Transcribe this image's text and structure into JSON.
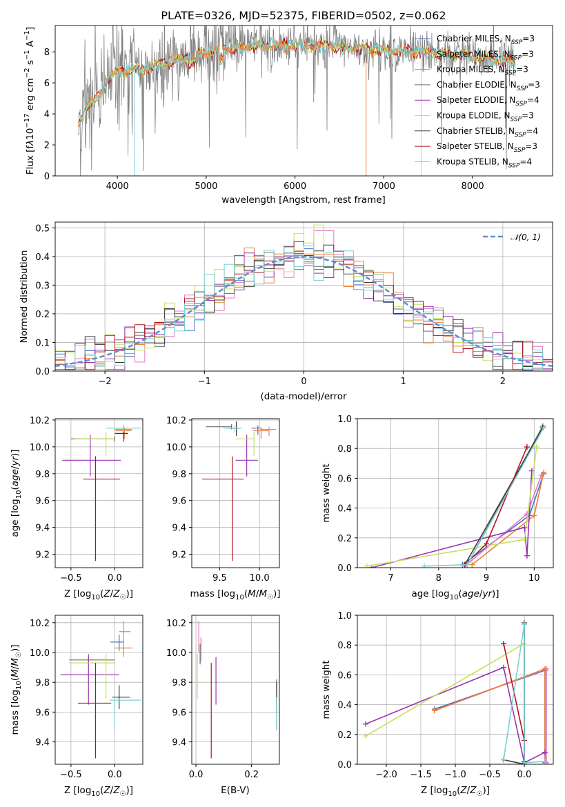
{
  "colors": [
    "#4472c4",
    "#e377c2",
    "#ee7d31",
    "#6b6b6b",
    "#9934b0",
    "#c8e05c",
    "#3d3d3d",
    "#b5121b",
    "#78d0d6"
  ],
  "chart_data": [
    {
      "id": "spectrum",
      "type": "line",
      "title": "PLATE=0326, MJD=52375, FIBERID=0502, z=0.062",
      "xlabel": "wavelength [Angstrom, rest frame]",
      "ylabel": "Flux [f_λ 10⁻¹⁷ erg cm⁻² s⁻¹ Å⁻¹]",
      "xlim": [
        3300,
        8900
      ],
      "ylim": [
        0,
        9.7
      ],
      "xticks": [
        "4000",
        "5000",
        "6000",
        "7000",
        "8000"
      ],
      "yticks": [
        "0",
        "2",
        "4",
        "6",
        "8"
      ],
      "grid": false,
      "legend_position": "top-right",
      "legend": [
        {
          "name": "Chabrier MILES, N_SSP=3",
          "sub": "SSP",
          "pre": "Chabrier MILES, N",
          "post": "=3"
        },
        {
          "name": "Salpeter MILES, N_SSP=3",
          "pre": "Salpeter MILES, N",
          "post": "=3"
        },
        {
          "name": "Kroupa MILES, N_SSP=3",
          "pre": "Kroupa MILES, N",
          "post": "=3"
        },
        {
          "name": "Chabrier ELODIE, N_SSP=3",
          "pre": "Chabrier ELODIE, N",
          "post": "=3"
        },
        {
          "name": "Salpeter ELODIE, N_SSP=4",
          "pre": "Salpeter ELODIE, N",
          "post": "=4"
        },
        {
          "name": "Kroupa ELODIE, N_SSP=3",
          "pre": "Kroupa ELODIE, N",
          "post": "=3"
        },
        {
          "name": "Chabrier STELIB, N_SSP=4",
          "pre": "Chabrier STELIB, N",
          "post": "=4"
        },
        {
          "name": "Salpeter STELIB, N_SSP=3",
          "pre": "Salpeter STELIB, N",
          "post": "=3"
        },
        {
          "name": "Kroupa STELIB, N_SSP=4",
          "pre": "Kroupa STELIB, N",
          "post": "=4"
        }
      ],
      "data_x_range": [
        3560,
        8480
      ],
      "continuum": [
        [
          3560,
          3.3
        ],
        [
          3650,
          4.4
        ],
        [
          3800,
          5.2
        ],
        [
          3900,
          6.3
        ],
        [
          4000,
          6.7
        ],
        [
          4300,
          6.9
        ],
        [
          4500,
          7.2
        ],
        [
          5000,
          8.0
        ],
        [
          5500,
          8.4
        ],
        [
          6000,
          8.4
        ],
        [
          6500,
          8.3
        ],
        [
          7000,
          8.1
        ],
        [
          7500,
          8.0
        ],
        [
          8000,
          7.7
        ],
        [
          8400,
          7.4
        ],
        [
          8480,
          7.3
        ]
      ]
    },
    {
      "id": "residuals",
      "type": "histogram",
      "xlabel": "(data-model)/error",
      "ylabel": "Normed distribution",
      "xlim": [
        -2.5,
        2.5
      ],
      "ylim": [
        0,
        0.52
      ],
      "xticks": [
        "−2",
        "−1",
        "0",
        "1",
        "2"
      ],
      "yticks": [
        "0.0",
        "0.1",
        "0.2",
        "0.3",
        "0.4",
        "0.5"
      ],
      "grid": true,
      "legend_position": "top-right",
      "reference_curve": "N(0,1)",
      "reference_label": "𝒩(0, 1)",
      "bin_width": 0.1,
      "spike": {
        "x": 0.2,
        "value": 0.49
      }
    },
    {
      "id": "age_vs_Z",
      "type": "errorbar",
      "xlabel": "Z [log₁₀(Z/Z☉)]",
      "ylabel": "age  [log₁₀(age/yr)]",
      "xlim": [
        -0.68,
        0.32
      ],
      "ylim": [
        9.1,
        10.21
      ],
      "xticks": [
        "−0.5",
        "0.0"
      ],
      "xtick_values": [
        -0.5,
        0.0
      ],
      "yticks": [
        "9.2",
        "9.4",
        "9.6",
        "9.8",
        "10.0",
        "10.2"
      ],
      "grid": true,
      "points": [
        {
          "x": 0.1,
          "xerr": [
            0.1,
            0.05
          ],
          "y": 10.14,
          "yerr": [
            0.05,
            0.02
          ]
        },
        {
          "x": 0.1,
          "xerr": [
            0.1,
            0.1
          ],
          "y": 10.13,
          "yerr": [
            0.05,
            0.02
          ]
        },
        {
          "x": 0.11,
          "xerr": [
            0.1,
            0.08
          ],
          "y": 10.12,
          "yerr": [
            0.06,
            0.02
          ]
        },
        {
          "x": 0.0,
          "xerr": [
            0.5,
            0.0
          ],
          "y": 10.06,
          "yerr": [
            0.02,
            0.02
          ]
        },
        {
          "x": -0.28,
          "xerr": [
            0.32,
            0.35
          ],
          "y": 9.9,
          "yerr": [
            0.12,
            0.19
          ]
        },
        {
          "x": -0.1,
          "xerr": [
            0.35,
            0.1
          ],
          "y": 10.06,
          "yerr": [
            0.13,
            0.05
          ]
        },
        {
          "x": 0.1,
          "xerr": [
            0.1,
            0.05
          ],
          "y": 10.1,
          "yerr": [
            0.06,
            0.05
          ]
        },
        {
          "x": -0.22,
          "xerr": [
            0.14,
            0.28
          ],
          "y": 9.76,
          "yerr": [
            0.61,
            0.17
          ]
        },
        {
          "x": 0.1,
          "xerr": [
            0.2,
            0.2
          ],
          "y": 10.14,
          "yerr": [
            0.03,
            0.02
          ]
        }
      ]
    },
    {
      "id": "age_vs_mass",
      "type": "errorbar",
      "xlabel": "mass [log₁₀(M/M☉)]",
      "ylabel": "",
      "xlim": [
        9.15,
        10.25
      ],
      "ylim": [
        9.1,
        10.21
      ],
      "xticks": [
        "9.5",
        "10.0"
      ],
      "xtick_values": [
        9.5,
        10.0
      ],
      "yticks": [
        "9.2",
        "9.4",
        "9.6",
        "9.8",
        "10.0",
        "10.2"
      ],
      "grid": true,
      "points": [
        {
          "x": 9.98,
          "xerr": [
            0.08,
            0.05
          ],
          "y": 10.14,
          "yerr": [
            0.05,
            0.02
          ]
        },
        {
          "x": 10.12,
          "xerr": [
            0.1,
            0.09
          ],
          "y": 10.13,
          "yerr": [
            0.05,
            0.02
          ]
        },
        {
          "x": 10.02,
          "xerr": [
            0.1,
            0.1
          ],
          "y": 10.12,
          "yerr": [
            0.06,
            0.02
          ]
        },
        {
          "x": 9.65,
          "xerr": [
            0.32,
            0.0
          ],
          "y": 10.15,
          "yerr": [
            0.02,
            0.02
          ]
        },
        {
          "x": 9.84,
          "xerr": [
            0.14,
            0.14
          ],
          "y": 9.9,
          "yerr": [
            0.12,
            0.19
          ]
        },
        {
          "x": 9.93,
          "xerr": [
            0.23,
            0.0
          ],
          "y": 10.06,
          "yerr": [
            0.13,
            0.05
          ]
        },
        {
          "x": 9.71,
          "xerr": [
            0.1,
            0.05
          ],
          "y": 10.14,
          "yerr": [
            0.06,
            0.05
          ]
        },
        {
          "x": 9.66,
          "xerr": [
            0.38,
            0.14
          ],
          "y": 9.76,
          "yerr": [
            0.61,
            0.17
          ]
        },
        {
          "x": 9.69,
          "xerr": [
            0.14,
            0.09
          ],
          "y": 10.14,
          "yerr": [
            0.03,
            0.02
          ]
        }
      ]
    },
    {
      "id": "weight_vs_age",
      "type": "line",
      "xlabel": "age  [log₁₀(age/yr)]",
      "ylabel": "mass weight",
      "xlim": [
        6.3,
        10.4
      ],
      "ylim": [
        0,
        1
      ],
      "xticks": [
        "7",
        "8",
        "9",
        "10"
      ],
      "xtick_values": [
        7,
        8,
        9,
        10
      ],
      "yticks": [
        "0.0",
        "0.2",
        "0.4",
        "0.6",
        "0.8",
        "1.0"
      ],
      "grid": true,
      "series": [
        {
          "x": [
            8.5,
            9.9,
            10.2
          ],
          "y": [
            0.02,
            0.35,
            0.63
          ]
        },
        {
          "x": [
            8.55,
            9.85,
            10.15
          ],
          "y": [
            0.01,
            0.36,
            0.62
          ]
        },
        {
          "x": [
            8.7,
            10.0,
            10.2
          ],
          "y": [
            0.02,
            0.35,
            0.64
          ]
        },
        {
          "x": [
            8.6,
            10.18
          ],
          "y": [
            0.02,
            0.95
          ]
        },
        {
          "x": [
            6.6,
            9.8,
            9.85,
            9.95
          ],
          "y": [
            0.0,
            0.27,
            0.08,
            0.65
          ]
        },
        {
          "x": [
            6.5,
            9.8,
            10.05
          ],
          "y": [
            0.01,
            0.19,
            0.81
          ]
        },
        {
          "x": [
            8.55,
            10.18
          ],
          "y": [
            0.02,
            0.94
          ]
        },
        {
          "x": [
            8.55,
            9.0,
            9.85
          ],
          "y": [
            0.02,
            0.16,
            0.81
          ]
        },
        {
          "x": [
            7.7,
            8.6,
            10.2
          ],
          "y": [
            0.01,
            0.02,
            0.94
          ]
        }
      ]
    },
    {
      "id": "mass_vs_Z",
      "type": "errorbar",
      "xlabel": "Z [log₁₀(Z/Z☉)]",
      "ylabel": "mass [log₁₀(M/M☉)]",
      "xlim": [
        -0.68,
        0.32
      ],
      "ylim": [
        9.25,
        10.25
      ],
      "xticks": [
        "−0.5",
        "0.0"
      ],
      "xtick_values": [
        -0.5,
        0.0
      ],
      "yticks": [
        "9.4",
        "9.6",
        "9.8",
        "10.0",
        "10.2"
      ],
      "grid": true,
      "points": [
        {
          "x": 0.05,
          "xerr": [
            0.1,
            0.05
          ],
          "y": 10.07,
          "yerr": [
            0.06,
            0.05
          ]
        },
        {
          "x": 0.1,
          "xerr": [
            0.05,
            0.08
          ],
          "y": 10.14,
          "yerr": [
            0.06,
            0.07
          ]
        },
        {
          "x": 0.1,
          "xerr": [
            0.1,
            0.1
          ],
          "y": 10.03,
          "yerr": [
            0.06,
            0.06
          ]
        },
        {
          "x": -0.3,
          "xerr": [
            0.22,
            0.3
          ],
          "y": 9.95,
          "yerr": [
            0.03,
            0.04
          ]
        },
        {
          "x": -0.3,
          "xerr": [
            0.32,
            0.35
          ],
          "y": 9.85,
          "yerr": [
            0.2,
            0.12
          ]
        },
        {
          "x": -0.1,
          "xerr": [
            0.42,
            0.1
          ],
          "y": 9.93,
          "yerr": [
            0.24,
            0.06
          ]
        },
        {
          "x": 0.05,
          "xerr": [
            0.08,
            0.12
          ],
          "y": 9.7,
          "yerr": [
            0.08,
            0.08
          ]
        },
        {
          "x": -0.22,
          "xerr": [
            0.2,
            0.18
          ],
          "y": 9.66,
          "yerr": [
            0.37,
            0.27
          ]
        },
        {
          "x": 0.0,
          "xerr": [
            0.06,
            0.3
          ],
          "y": 9.68,
          "yerr": [
            0.2,
            0.02
          ]
        }
      ]
    },
    {
      "id": "mass_vs_ebv",
      "type": "errorbar",
      "xlabel": "E(B-V)",
      "ylabel": "",
      "xlim": [
        -0.015,
        0.3
      ],
      "ylim": [
        9.25,
        10.25
      ],
      "xticks": [
        "0.0",
        "0.2"
      ],
      "xtick_values": [
        0.0,
        0.2
      ],
      "yticks": [
        "9.4",
        "9.6",
        "9.8",
        "10.0",
        "10.2"
      ],
      "grid": true,
      "points": [
        {
          "x": 0.015,
          "xerr": [
            0,
            0
          ],
          "y": 10.0,
          "yerr": [
            0.08,
            0.06
          ]
        },
        {
          "x": 0.01,
          "xerr": [
            0,
            0
          ],
          "y": 10.1,
          "yerr": [
            0.1,
            0.11
          ]
        },
        {
          "x": 0.018,
          "xerr": [
            0,
            0
          ],
          "y": 10.02,
          "yerr": [
            0.08,
            0.08
          ]
        },
        {
          "x": 0.29,
          "xerr": [
            0,
            0
          ],
          "y": 9.7,
          "yerr": [
            0.22,
            0.12
          ]
        },
        {
          "x": 0.072,
          "xerr": [
            0,
            0
          ],
          "y": 9.85,
          "yerr": [
            0.2,
            0.12
          ]
        },
        {
          "x": 0.005,
          "xerr": [
            0,
            0
          ],
          "y": 9.93,
          "yerr": [
            0.24,
            0.06
          ]
        },
        {
          "x": 0.29,
          "xerr": [
            0,
            0
          ],
          "y": 9.7,
          "yerr": [
            0.1,
            0.1
          ]
        },
        {
          "x": 0.055,
          "xerr": [
            0,
            0
          ],
          "y": 9.66,
          "yerr": [
            0.37,
            0.27
          ]
        },
        {
          "x": 0.29,
          "xerr": [
            0,
            0
          ],
          "y": 9.68,
          "yerr": [
            0.2,
            0.02
          ]
        }
      ]
    },
    {
      "id": "weight_vs_Z",
      "type": "line",
      "xlabel": "Z [log₁₀(Z/Z☉)]",
      "ylabel": "mass weight",
      "xlim": [
        -2.42,
        0.42
      ],
      "ylim": [
        0,
        1
      ],
      "xticks": [
        "−2.0",
        "−1.5",
        "−1.0",
        "−0.5",
        "0.0"
      ],
      "xtick_values": [
        -2.0,
        -1.5,
        -1.0,
        -0.5,
        0.0
      ],
      "yticks": [
        "0.0",
        "0.2",
        "0.4",
        "0.6",
        "0.8",
        "1.0"
      ],
      "grid": true,
      "series": [
        {
          "x": [
            -1.3,
            0.3,
            0.3
          ],
          "y": [
            0.37,
            0.63,
            0.01
          ]
        },
        {
          "x": [
            -1.3,
            0.32,
            0.32
          ],
          "y": [
            0.36,
            0.64,
            0.01
          ]
        },
        {
          "x": [
            -1.3,
            0.3,
            0.3
          ],
          "y": [
            0.36,
            0.64,
            0.02
          ]
        },
        {
          "x": [
            -0.3,
            0.0,
            0.0
          ],
          "y": [
            0.03,
            0.0,
            0.95
          ]
        },
        {
          "x": [
            -2.3,
            -0.3,
            0.0,
            0.3
          ],
          "y": [
            0.27,
            0.65,
            0.01,
            0.08
          ]
        },
        {
          "x": [
            -2.3,
            0.0,
            0.0
          ],
          "y": [
            0.19,
            0.81,
            0.0
          ]
        },
        {
          "x": [
            -0.3,
            0.0,
            0.0
          ],
          "y": [
            0.03,
            0.0,
            0.94
          ]
        },
        {
          "x": [
            -0.3,
            0.0,
            0.0
          ],
          "y": [
            0.81,
            0.16,
            0.02
          ]
        },
        {
          "x": [
            -0.3,
            0.0,
            0.0,
            0.3
          ],
          "y": [
            0.03,
            0.94,
            0.01,
            0.02
          ]
        }
      ]
    }
  ]
}
